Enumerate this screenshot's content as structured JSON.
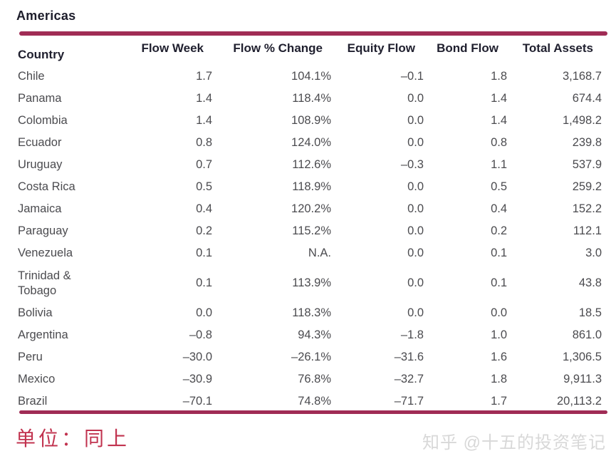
{
  "title": "Americas",
  "colors": {
    "rule": "#A02C55",
    "note": "#C1334F",
    "header_text": "#20202F",
    "body_text": "#4B4B4F",
    "watermark_text": "#D8D8D8"
  },
  "table": {
    "headers": [
      "Country",
      "Flow Week",
      "Flow % Change",
      "Equity Flow",
      "Bond Flow",
      "Total Assets"
    ],
    "rows": [
      [
        "Chile",
        "1.7",
        "104.1%",
        "–0.1",
        "1.8",
        "3,168.7"
      ],
      [
        "Panama",
        "1.4",
        "118.4%",
        "0.0",
        "1.4",
        "674.4"
      ],
      [
        "Colombia",
        "1.4",
        "108.9%",
        "0.0",
        "1.4",
        "1,498.2"
      ],
      [
        "Ecuador",
        "0.8",
        "124.0%",
        "0.0",
        "0.8",
        "239.8"
      ],
      [
        "Uruguay",
        "0.7",
        "112.6%",
        "–0.3",
        "1.1",
        "537.9"
      ],
      [
        "Costa Rica",
        "0.5",
        "118.9%",
        "0.0",
        "0.5",
        "259.2"
      ],
      [
        "Jamaica",
        "0.4",
        "120.2%",
        "0.0",
        "0.4",
        "152.2"
      ],
      [
        "Paraguay",
        "0.2",
        "115.2%",
        "0.0",
        "0.2",
        "112.1"
      ],
      [
        "Venezuela",
        "0.1",
        "N.A.",
        "0.0",
        "0.1",
        "3.0"
      ],
      [
        "Trinidad & Tobago",
        "0.1",
        "113.9%",
        "0.0",
        "0.1",
        "43.8"
      ],
      [
        "Bolivia",
        "0.0",
        "118.3%",
        "0.0",
        "0.0",
        "18.5"
      ],
      [
        "Argentina",
        "–0.8",
        "94.3%",
        "–1.8",
        "1.0",
        "861.0"
      ],
      [
        "Peru",
        "–30.0",
        "–26.1%",
        "–31.6",
        "1.6",
        "1,306.5"
      ],
      [
        "Mexico",
        "–30.9",
        "76.8%",
        "–32.7",
        "1.8",
        "9,911.3"
      ],
      [
        "Brazil",
        "–70.1",
        "74.8%",
        "–71.7",
        "1.7",
        "20,113.2"
      ]
    ]
  },
  "footnote": "单位：同上",
  "watermark": "知乎 @十五的投资笔记"
}
